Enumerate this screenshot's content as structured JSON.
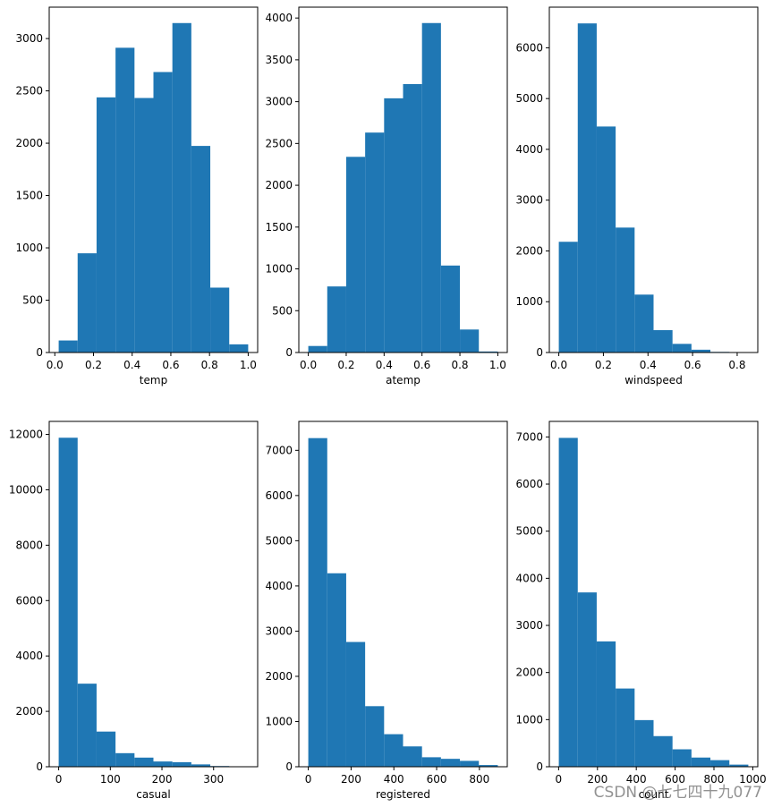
{
  "bar_color": "#1f77b4",
  "watermark": "CSDN @七七四十九077",
  "chart_data": [
    {
      "type": "bar",
      "xlabel": "temp",
      "edges": [
        0.02,
        0.118,
        0.216,
        0.314,
        0.412,
        0.51,
        0.608,
        0.706,
        0.804,
        0.902,
        1.0
      ],
      "values": [
        115,
        948,
        2438,
        2912,
        2432,
        2680,
        3148,
        1974,
        620,
        78
      ],
      "xlim": [
        -0.029,
        1.049
      ],
      "ylim": [
        0,
        3300
      ],
      "xticks": [
        0.0,
        0.2,
        0.4,
        0.6,
        0.8,
        1.0
      ],
      "xtick_labels": [
        "0.0",
        "0.2",
        "0.4",
        "0.6",
        "0.8",
        "1.0"
      ],
      "yticks": [
        0,
        500,
        1000,
        1500,
        2000,
        2500,
        3000
      ],
      "ytick_labels": [
        "0",
        "500",
        "1000",
        "1500",
        "2000",
        "2500",
        "3000"
      ]
    },
    {
      "type": "bar",
      "xlabel": "atemp",
      "edges": [
        0.0,
        0.1,
        0.2,
        0.3,
        0.4,
        0.5,
        0.6,
        0.7,
        0.8,
        0.9,
        1.0
      ],
      "values": [
        78,
        790,
        2340,
        2630,
        3040,
        3210,
        3940,
        1040,
        275,
        12
      ],
      "xlim": [
        -0.05,
        1.05
      ],
      "ylim": [
        0,
        4130
      ],
      "xticks": [
        0.0,
        0.2,
        0.4,
        0.6,
        0.8,
        1.0
      ],
      "xtick_labels": [
        "0.0",
        "0.2",
        "0.4",
        "0.6",
        "0.8",
        "1.0"
      ],
      "yticks": [
        0,
        500,
        1000,
        1500,
        2000,
        2500,
        3000,
        3500,
        4000
      ],
      "ytick_labels": [
        "0",
        "500",
        "1000",
        "1500",
        "2000",
        "2500",
        "3000",
        "3500",
        "4000"
      ]
    },
    {
      "type": "bar",
      "xlabel": "windspeed",
      "edges": [
        0.0,
        0.085,
        0.17,
        0.255,
        0.34,
        0.425,
        0.51,
        0.595,
        0.68,
        0.765,
        0.85
      ],
      "values": [
        2180,
        6480,
        4450,
        2460,
        1140,
        440,
        170,
        55,
        12,
        5
      ],
      "xlim": [
        -0.0425,
        0.8925
      ],
      "ylim": [
        0,
        6800
      ],
      "xticks": [
        0.0,
        0.2,
        0.4,
        0.6,
        0.8
      ],
      "xtick_labels": [
        "0.0",
        "0.2",
        "0.4",
        "0.6",
        "0.8"
      ],
      "yticks": [
        0,
        1000,
        2000,
        3000,
        4000,
        5000,
        6000
      ],
      "ytick_labels": [
        "0",
        "1000",
        "2000",
        "3000",
        "4000",
        "5000",
        "6000"
      ]
    },
    {
      "type": "bar",
      "xlabel": "casual",
      "edges": [
        0,
        36.7,
        73.4,
        110.1,
        146.8,
        183.5,
        220.2,
        256.9,
        293.6,
        330.3,
        367
      ],
      "values": [
        11880,
        3000,
        1270,
        490,
        330,
        190,
        165,
        85,
        25,
        15
      ],
      "xlim": [
        -18.35,
        385.35
      ],
      "ylim": [
        0,
        12470
      ],
      "xticks": [
        0,
        100,
        200,
        300
      ],
      "xtick_labels": [
        "0",
        "100",
        "200",
        "300"
      ],
      "yticks": [
        0,
        2000,
        4000,
        6000,
        8000,
        10000,
        12000
      ],
      "ytick_labels": [
        "0",
        "2000",
        "4000",
        "6000",
        "8000",
        "10000",
        "12000"
      ]
    },
    {
      "type": "bar",
      "xlabel": "registered",
      "edges": [
        0,
        88.6,
        177.2,
        265.8,
        354.4,
        443.0,
        531.6,
        620.2,
        708.8,
        797.4,
        886
      ],
      "values": [
        7270,
        4280,
        2760,
        1340,
        720,
        450,
        210,
        175,
        130,
        38
      ],
      "xlim": [
        -44.3,
        930.3
      ],
      "ylim": [
        0,
        7640
      ],
      "xticks": [
        0,
        200,
        400,
        600,
        800
      ],
      "xtick_labels": [
        "0",
        "200",
        "400",
        "600",
        "800"
      ],
      "yticks": [
        0,
        1000,
        2000,
        3000,
        4000,
        5000,
        6000,
        7000
      ],
      "ytick_labels": [
        "0",
        "1000",
        "2000",
        "3000",
        "4000",
        "5000",
        "6000",
        "7000"
      ]
    },
    {
      "type": "bar",
      "xlabel": "count",
      "edges": [
        1,
        98.6,
        196.2,
        293.8,
        391.4,
        489.0,
        586.6,
        684.2,
        781.8,
        879.4,
        977
      ],
      "values": [
        6980,
        3700,
        2660,
        1660,
        990,
        650,
        370,
        195,
        140,
        45
      ],
      "xlim": [
        -47.8,
        1025.8
      ],
      "ylim": [
        0,
        7330
      ],
      "xticks": [
        0,
        200,
        400,
        600,
        800,
        1000
      ],
      "xtick_labels": [
        "0",
        "200",
        "400",
        "600",
        "800",
        "1000"
      ],
      "yticks": [
        0,
        1000,
        2000,
        3000,
        4000,
        5000,
        6000,
        7000
      ],
      "ytick_labels": [
        "0",
        "1000",
        "2000",
        "3000",
        "4000",
        "5000",
        "6000",
        "7000"
      ]
    }
  ]
}
